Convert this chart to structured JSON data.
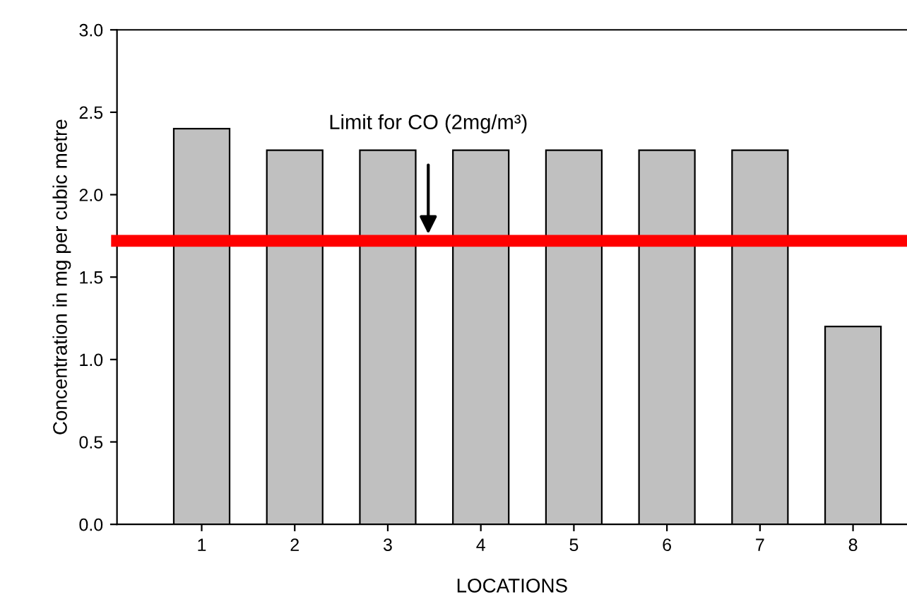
{
  "chart_data": {
    "type": "bar",
    "xlabel": "LOCATIONS",
    "ylabel": "Concentration in mg per cubic metre",
    "categories": [
      "1",
      "2",
      "3",
      "4",
      "5",
      "6",
      "7",
      "8"
    ],
    "values": [
      2.4,
      2.27,
      2.27,
      2.27,
      2.27,
      2.27,
      2.27,
      1.2
    ],
    "color": "#c0c0c0",
    "ylim": [
      0,
      3
    ],
    "yticks": [
      {
        "value": 0,
        "label": "0.0"
      },
      0.5,
      {
        "value": 1,
        "label": "1.0"
      },
      1.5,
      {
        "value": 2,
        "label": "2.0"
      },
      2.5,
      {
        "value": 3,
        "label": "3.0"
      }
    ],
    "ref_lines": [
      {
        "axis": "y",
        "value": 1.72,
        "color": "#ff0000"
      }
    ],
    "annotations": [
      "Limit for CO (2mg/m³)"
    ],
    "grid": false,
    "legend": false
  }
}
